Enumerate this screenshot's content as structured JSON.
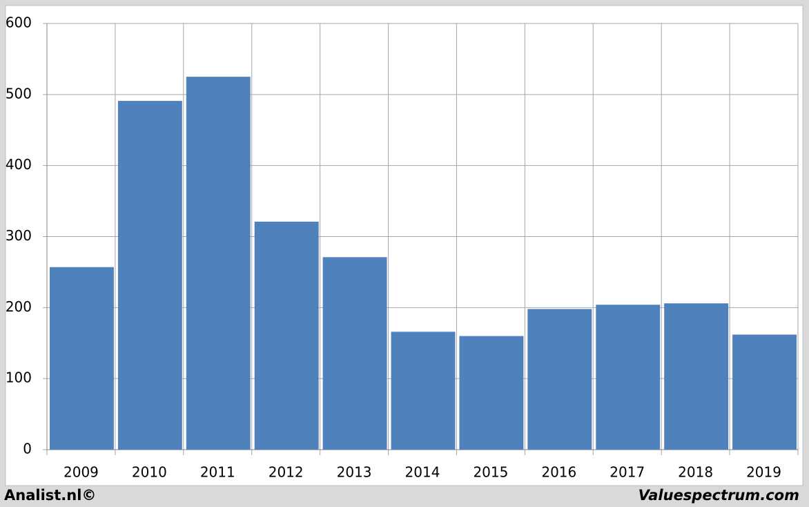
{
  "chart_data": {
    "type": "bar",
    "categories": [
      "2009",
      "2010",
      "2011",
      "2012",
      "2013",
      "2014",
      "2015",
      "2016",
      "2017",
      "2018",
      "2019"
    ],
    "values": [
      257,
      491,
      525,
      321,
      271,
      166,
      160,
      198,
      204,
      206,
      162
    ],
    "color": "#4f81bd",
    "ylim": [
      0,
      600
    ],
    "yticks": [
      0,
      100,
      200,
      300,
      400,
      500,
      600
    ],
    "grid": true
  },
  "footer": {
    "left": "Analist.nl©",
    "right": "Valuespectrum.com"
  }
}
